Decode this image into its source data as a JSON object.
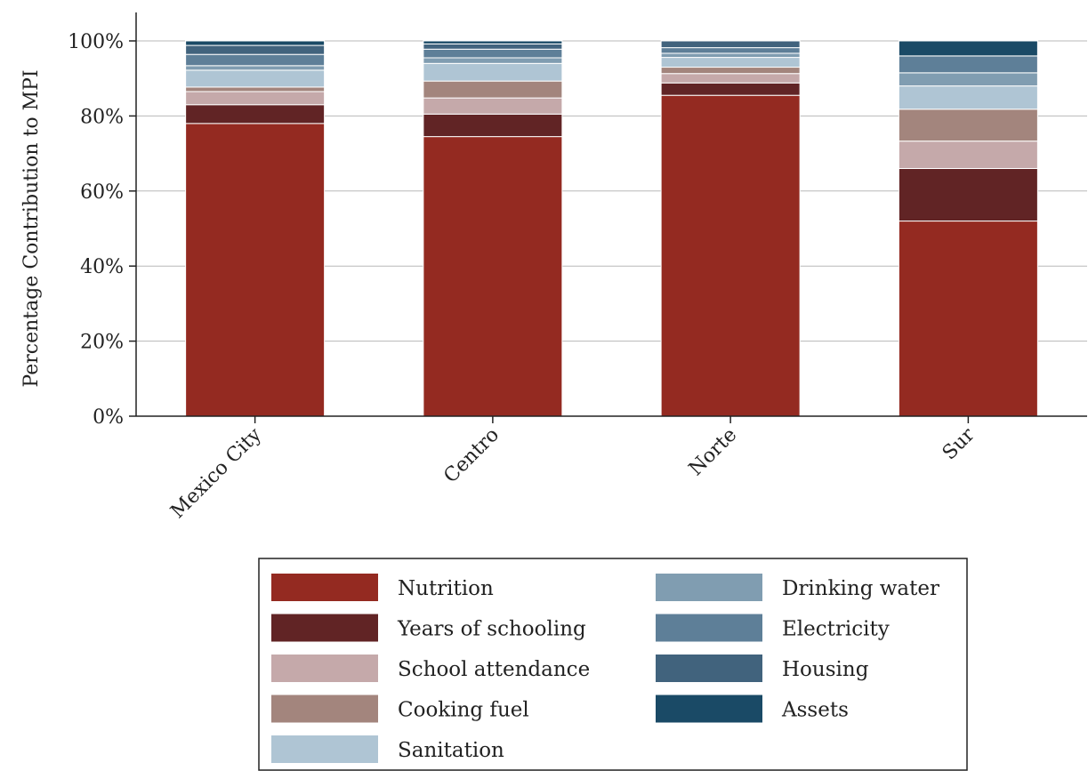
{
  "chart_data": {
    "type": "bar",
    "stacked": true,
    "categories": [
      "Mexico City",
      "Centro",
      "Norte",
      "Sur"
    ],
    "ylabel": "Percentage Contribution to MPI",
    "ylim": [
      0,
      100
    ],
    "yticks": [
      "0%",
      "20%",
      "40%",
      "60%",
      "80%",
      "100%"
    ],
    "grid": true,
    "legend_position": "bottom",
    "series": [
      {
        "name": "Nutrition",
        "color": "#942a21",
        "values": [
          78.0,
          74.5,
          85.5,
          52.0
        ]
      },
      {
        "name": "Years of schooling",
        "color": "#612425",
        "values": [
          5.0,
          6.0,
          3.3,
          14.0
        ]
      },
      {
        "name": "School attendance",
        "color": "#c5a9aa",
        "values": [
          3.5,
          4.3,
          2.5,
          7.3
        ]
      },
      {
        "name": "Cooking fuel",
        "color": "#a3857d",
        "values": [
          1.2,
          4.5,
          1.7,
          8.5
        ]
      },
      {
        "name": "Sanitation",
        "color": "#afc5d4",
        "values": [
          4.5,
          4.7,
          2.6,
          6.2
        ]
      },
      {
        "name": "Drinking water",
        "color": "#809db1",
        "values": [
          1.2,
          1.5,
          1.1,
          3.5
        ]
      },
      {
        "name": "Electricity",
        "color": "#5e7f98",
        "values": [
          3.0,
          2.3,
          1.5,
          4.5
        ]
      },
      {
        "name": "Housing",
        "color": "#41637d",
        "values": [
          2.4,
          1.4,
          1.8,
          0.0
        ]
      },
      {
        "name": "Assets",
        "color": "#1a4a66",
        "values": [
          1.2,
          0.8,
          0.0,
          4.0
        ]
      }
    ]
  }
}
